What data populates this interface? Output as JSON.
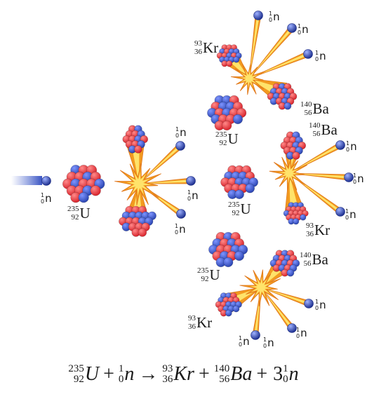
{
  "colors": {
    "proton": "#d8232b",
    "neutron": "#2b45b2",
    "burst_outer": "#f29a1f",
    "burst_inner": "#ffe36a",
    "text": "#1a1a1a"
  },
  "labels": {
    "u235": {
      "mass": "235",
      "atomic": "92",
      "symbol": "U"
    },
    "kr93": {
      "mass": "93",
      "atomic": "36",
      "symbol": "Kr"
    },
    "ba140": {
      "mass": "140",
      "atomic": "56",
      "symbol": "Ba"
    },
    "neutron": {
      "mass": "1",
      "atomic": "0",
      "symbol": "n"
    }
  },
  "equation": {
    "u": {
      "mass": "235",
      "atomic": "92",
      "symbol": "U"
    },
    "plus1": "+",
    "n1": {
      "mass": "1",
      "atomic": "0",
      "symbol": "n"
    },
    "arrow": "→",
    "kr": {
      "mass": "93",
      "atomic": "36",
      "symbol": "Kr"
    },
    "plus2": "+",
    "ba": {
      "mass": "140",
      "atomic": "56",
      "symbol": "Ba"
    },
    "plus3": "+",
    "coef": "3",
    "n2": {
      "mass": "1",
      "atomic": "0",
      "symbol": "n"
    }
  }
}
